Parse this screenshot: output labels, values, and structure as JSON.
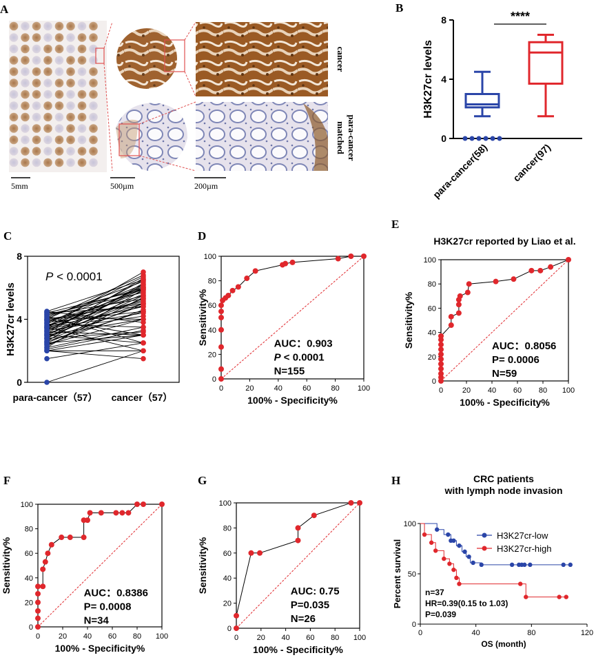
{
  "panel_letters": {
    "A": "A",
    "B": "B",
    "C": "C",
    "D": "D",
    "E": "E",
    "F": "F",
    "G": "G",
    "H": "H"
  },
  "panel_a": {
    "labels": {
      "cancer": "cancer",
      "para1": "matched",
      "para2": "para-cancer"
    },
    "scalebars": [
      "5mm",
      "500µm",
      "200µm"
    ],
    "colors": {
      "stain_brown": "#8B5A2B",
      "stain_blue": "#B9C2DD",
      "guide_red": "#E05050"
    }
  },
  "chart_data": [
    {
      "id": "B",
      "type": "box",
      "ylabel": "H3K27cr levels",
      "ylim": [
        0,
        8
      ],
      "yticks": [
        0,
        4,
        8
      ],
      "categories": [
        "para-cancer(58)",
        "cancer(97)"
      ],
      "colors": [
        "#2A45A8",
        "#E0272C"
      ],
      "boxes": [
        {
          "min": 1.5,
          "q1": 2.1,
          "median": 2.3,
          "q3": 3.0,
          "max": 4.5,
          "outliers": [
            0,
            0,
            0,
            0,
            0,
            0
          ]
        },
        {
          "min": 1.5,
          "q1": 3.7,
          "median": 5.8,
          "q3": 6.5,
          "max": 7.0,
          "outliers": []
        }
      ],
      "significance": "****"
    },
    {
      "id": "C",
      "type": "paired-dot",
      "ylabel": "H3K27cr levels",
      "ylim": [
        0,
        8
      ],
      "yticks": [
        0,
        4,
        8
      ],
      "categories": [
        "para-cancer（57）",
        "cancer（57）"
      ],
      "colors": [
        "#2A45A8",
        "#E0272C"
      ],
      "annotation_p": "P",
      "annotation_rest": " < 0.0001",
      "pairs": [
        [
          0,
          2.0
        ],
        [
          1.5,
          2.5
        ],
        [
          2.0,
          3.0
        ],
        [
          2.0,
          1.5
        ],
        [
          2.0,
          2.0
        ],
        [
          2.2,
          3.5
        ],
        [
          2.4,
          4.0
        ],
        [
          2.5,
          3.0
        ],
        [
          2.5,
          5.0
        ],
        [
          2.6,
          4.5
        ],
        [
          2.8,
          3.2
        ],
        [
          2.8,
          5.5
        ],
        [
          3.0,
          2.5
        ],
        [
          3.0,
          4.0
        ],
        [
          3.0,
          6.0
        ],
        [
          3.1,
          5.0
        ],
        [
          3.2,
          3.0
        ],
        [
          3.2,
          6.5
        ],
        [
          3.3,
          4.2
        ],
        [
          3.4,
          5.8
        ],
        [
          3.5,
          2.0
        ],
        [
          3.5,
          4.8
        ],
        [
          3.5,
          6.0
        ],
        [
          3.6,
          5.2
        ],
        [
          3.7,
          3.5
        ],
        [
          3.8,
          6.2
        ],
        [
          3.8,
          4.5
        ],
        [
          3.9,
          5.5
        ],
        [
          4.0,
          3.0
        ],
        [
          4.0,
          6.8
        ],
        [
          4.0,
          5.0
        ],
        [
          4.1,
          4.0
        ],
        [
          4.2,
          6.0
        ],
        [
          4.2,
          2.5
        ],
        [
          4.3,
          5.7
        ],
        [
          4.4,
          4.8
        ],
        [
          4.5,
          6.5
        ],
        [
          4.5,
          3.8
        ],
        [
          2.2,
          5.9
        ],
        [
          2.6,
          6.3
        ],
        [
          3.0,
          5.6
        ],
        [
          3.3,
          6.1
        ],
        [
          2.4,
          4.6
        ],
        [
          2.9,
          5.3
        ],
        [
          3.6,
          5.9
        ],
        [
          4.1,
          6.4
        ],
        [
          2.1,
          3.3
        ],
        [
          2.7,
          4.9
        ],
        [
          3.4,
          4.4
        ],
        [
          3.9,
          5.1
        ],
        [
          2.3,
          5.4
        ],
        [
          3.1,
          6.6
        ],
        [
          4.3,
          5.3
        ],
        [
          3.7,
          6.7
        ],
        [
          2.8,
          6.2
        ],
        [
          3.5,
          7.0
        ],
        [
          4.4,
          5.9
        ]
      ]
    },
    {
      "id": "D",
      "type": "roc",
      "xlabel": "100% - Specificity%",
      "ylabel": "Sensitivity%",
      "xlim": [
        0,
        100
      ],
      "ylim": [
        0,
        100
      ],
      "ticks": [
        0,
        20,
        40,
        60,
        80,
        100
      ],
      "stats": [
        "AUC：0.903",
        "P < 0.0001",
        "N=155"
      ],
      "points": [
        [
          0,
          0
        ],
        [
          0,
          8
        ],
        [
          0,
          26
        ],
        [
          0,
          40
        ],
        [
          0,
          50
        ],
        [
          0,
          55
        ],
        [
          0,
          60
        ],
        [
          1,
          64
        ],
        [
          3,
          66
        ],
        [
          5,
          68
        ],
        [
          8,
          72
        ],
        [
          12,
          75
        ],
        [
          18,
          82
        ],
        [
          24,
          88
        ],
        [
          43,
          93
        ],
        [
          45,
          94
        ],
        [
          50,
          95
        ],
        [
          82,
          98
        ],
        [
          91,
          100
        ],
        [
          100,
          100
        ]
      ]
    },
    {
      "id": "E",
      "type": "roc",
      "title": "H3K27cr reported by Liao et al.",
      "xlabel": "100% - Specificity%",
      "ylabel": "Sensitivity%",
      "xlim": [
        0,
        100
      ],
      "ylim": [
        0,
        100
      ],
      "ticks": [
        0,
        20,
        40,
        60,
        80,
        100
      ],
      "stats": [
        "AUC：0.8056",
        "P= 0.0006",
        "N=59"
      ],
      "points": [
        [
          0,
          0
        ],
        [
          0,
          3
        ],
        [
          0,
          6
        ],
        [
          0,
          10
        ],
        [
          0,
          14
        ],
        [
          0,
          18
        ],
        [
          0,
          22
        ],
        [
          0,
          26
        ],
        [
          0,
          30
        ],
        [
          0,
          34
        ],
        [
          0,
          37
        ],
        [
          8,
          46
        ],
        [
          8,
          53
        ],
        [
          14,
          56
        ],
        [
          14,
          63
        ],
        [
          14,
          67
        ],
        [
          15,
          70
        ],
        [
          21,
          73
        ],
        [
          22,
          80
        ],
        [
          43,
          82
        ],
        [
          57,
          84
        ],
        [
          71,
          91
        ],
        [
          78,
          91
        ],
        [
          86,
          94
        ],
        [
          100,
          100
        ]
      ]
    },
    {
      "id": "F",
      "type": "roc",
      "xlabel": "100% - Specificity%",
      "ylabel": "Sensitivity%",
      "xlim": [
        0,
        100
      ],
      "ylim": [
        0,
        100
      ],
      "ticks": [
        0,
        20,
        40,
        60,
        80,
        100
      ],
      "stats": [
        "AUC：0.8386",
        "P= 0.0008",
        "N=34"
      ],
      "points": [
        [
          0,
          0
        ],
        [
          0,
          7
        ],
        [
          0,
          13
        ],
        [
          0,
          20
        ],
        [
          0,
          27
        ],
        [
          0,
          33
        ],
        [
          4,
          33
        ],
        [
          4,
          47
        ],
        [
          6,
          53
        ],
        [
          8,
          60
        ],
        [
          11,
          67
        ],
        [
          19,
          73
        ],
        [
          26,
          73
        ],
        [
          37,
          73
        ],
        [
          37,
          87
        ],
        [
          40,
          87
        ],
        [
          42,
          93
        ],
        [
          51,
          93
        ],
        [
          63,
          93
        ],
        [
          68,
          93
        ],
        [
          73,
          93
        ],
        [
          80,
          100
        ],
        [
          85,
          100
        ],
        [
          100,
          100
        ]
      ]
    },
    {
      "id": "G",
      "type": "roc",
      "xlabel": "100% - Specificity%",
      "ylabel": "Sensitivity%",
      "xlim": [
        0,
        100
      ],
      "ylim": [
        0,
        100
      ],
      "ticks": [
        0,
        20,
        40,
        60,
        80,
        100
      ],
      "stats": [
        "AUC: 0.75",
        "P=0.035",
        "N=26"
      ],
      "points": [
        [
          0,
          0
        ],
        [
          0,
          10
        ],
        [
          12,
          60
        ],
        [
          19,
          60
        ],
        [
          50,
          70
        ],
        [
          50,
          80
        ],
        [
          63,
          90
        ],
        [
          93,
          100
        ],
        [
          100,
          100
        ]
      ]
    },
    {
      "id": "H",
      "type": "survival",
      "title": [
        "CRC patients",
        "with lymph node invasion"
      ],
      "xlabel": "OS (month)",
      "ylabel": "Percent survival",
      "xlim": [
        0,
        120
      ],
      "ylim": [
        0,
        100
      ],
      "xticks": [
        0,
        40,
        80,
        120
      ],
      "yticks": [
        0,
        50,
        100
      ],
      "stats": [
        "n=37",
        "HR=0.39(0.15 to 1.03)",
        "P=0.039"
      ],
      "series": [
        {
          "name": "H3K27cr-low",
          "color": "#2A45A8",
          "steps": [
            [
              0,
              100
            ],
            [
              12,
              94
            ],
            [
              17,
              89
            ],
            [
              22,
              83
            ],
            [
              26,
              78
            ],
            [
              30,
              72
            ],
            [
              33,
              67
            ],
            [
              36,
              61
            ],
            [
              44,
              59
            ],
            [
              108,
              59
            ]
          ],
          "censored": [
            [
              12,
              94
            ],
            [
              20,
              89
            ],
            [
              22,
              83
            ],
            [
              24,
              83
            ],
            [
              28,
              78
            ],
            [
              32,
              72
            ],
            [
              35,
              67
            ],
            [
              38,
              61
            ],
            [
              44,
              59
            ],
            [
              66,
              59
            ],
            [
              71,
              59
            ],
            [
              73,
              59
            ],
            [
              75,
              59
            ],
            [
              79,
              59
            ],
            [
              103,
              59
            ],
            [
              108,
              59
            ]
          ]
        },
        {
          "name": "H3K27cr-high",
          "color": "#E0272C",
          "steps": [
            [
              0,
              100
            ],
            [
              3,
              89
            ],
            [
              8,
              81
            ],
            [
              11,
              73
            ],
            [
              17,
              65
            ],
            [
              21,
              60
            ],
            [
              24,
              54
            ],
            [
              26,
              46
            ],
            [
              28,
              40
            ],
            [
              75,
              40
            ],
            [
              76,
              27
            ],
            [
              105,
              27
            ]
          ],
          "censored": [
            [
              3,
              89
            ],
            [
              8,
              81
            ],
            [
              11,
              73
            ],
            [
              17,
              65
            ],
            [
              21,
              60
            ],
            [
              24,
              54
            ],
            [
              26,
              46
            ],
            [
              28,
              40
            ],
            [
              72,
              40
            ],
            [
              76,
              27
            ],
            [
              100,
              27
            ],
            [
              105,
              27
            ]
          ]
        }
      ]
    }
  ]
}
